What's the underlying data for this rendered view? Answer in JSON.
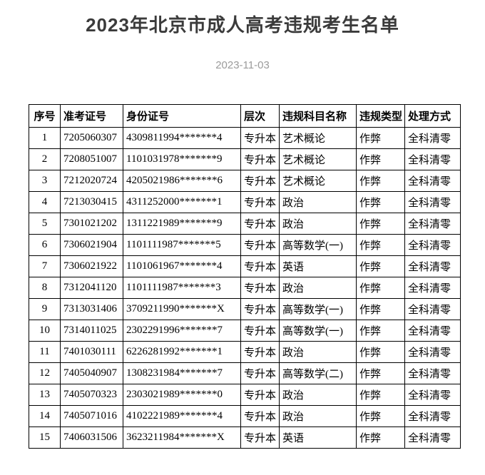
{
  "page": {
    "title": "2023年北京市成人高考违规考生名单",
    "date": "2023-11-03"
  },
  "colors": {
    "background": "#ffffff",
    "title_text": "#3b3b3b",
    "date_text": "#9b9b9b",
    "table_border": "#000000",
    "table_text": "#000000"
  },
  "table": {
    "columns": [
      "序号",
      "准考证号",
      "身份证号",
      "层次",
      "违规科目名称",
      "违规类型",
      "处理方式"
    ],
    "rows": [
      [
        "1",
        "7205060307",
        "4309811994*******4",
        "专升本",
        "艺术概论",
        "作弊",
        "全科清零"
      ],
      [
        "2",
        "7208051007",
        "1101031978*******9",
        "专升本",
        "艺术概论",
        "作弊",
        "全科清零"
      ],
      [
        "3",
        "7212020724",
        "4205021986*******6",
        "专升本",
        "艺术概论",
        "作弊",
        "全科清零"
      ],
      [
        "4",
        "7213030415",
        "4311252000*******1",
        "专升本",
        "政治",
        "作弊",
        "全科清零"
      ],
      [
        "5",
        "7301021202",
        "1311221989*******9",
        "专升本",
        "政治",
        "作弊",
        "全科清零"
      ],
      [
        "6",
        "7306021904",
        "1101111987*******5",
        "专升本",
        "高等数学(一)",
        "作弊",
        "全科清零"
      ],
      [
        "7",
        "7306021922",
        "1101061967*******4",
        "专升本",
        "英语",
        "作弊",
        "全科清零"
      ],
      [
        "8",
        "7312041120",
        "1101111987*******3",
        "专升本",
        "政治",
        "作弊",
        "全科清零"
      ],
      [
        "9",
        "7313031406",
        "3709211990*******X",
        "专升本",
        "高等数学(一)",
        "作弊",
        "全科清零"
      ],
      [
        "10",
        "7314011025",
        "2302291996*******7",
        "专升本",
        "高等数学(一)",
        "作弊",
        "全科清零"
      ],
      [
        "11",
        "7401030111",
        "6226281992*******1",
        "专升本",
        "政治",
        "作弊",
        "全科清零"
      ],
      [
        "12",
        "7405040907",
        "1308231984*******7",
        "专升本",
        "高等数学(二)",
        "作弊",
        "全科清零"
      ],
      [
        "13",
        "7405070323",
        "2303021989*******0",
        "专升本",
        "政治",
        "作弊",
        "全科清零"
      ],
      [
        "14",
        "7405071016",
        "4102221989*******4",
        "专升本",
        "政治",
        "作弊",
        "全科清零"
      ],
      [
        "15",
        "7406031506",
        "3623211984*******X",
        "专升本",
        "英语",
        "作弊",
        "全科清零"
      ]
    ]
  }
}
